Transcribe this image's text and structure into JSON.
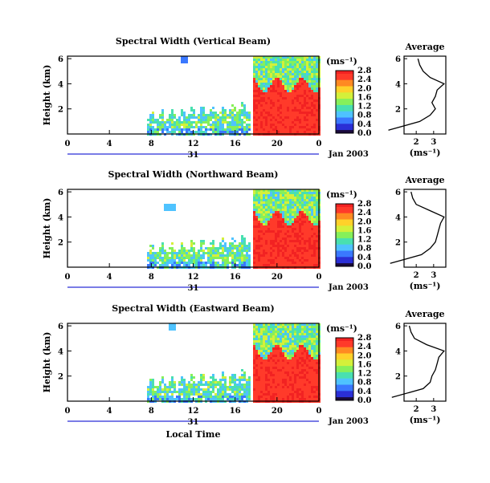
{
  "chart_data": [
    {
      "type": "heatmap",
      "title": "Spectral Width (Vertical Beam)",
      "ylabel": "Height (km)",
      "yticks": [
        "2",
        "4",
        "6"
      ],
      "xticks": [
        "0",
        "4",
        "8",
        "12",
        "16",
        "20",
        "0"
      ],
      "day_label": "31",
      "date_label": "Jan 2003",
      "colorbar": {
        "unit": "(ms⁻¹)",
        "ticks": [
          "0.0",
          "0.4",
          "0.8",
          "1.2",
          "1.6",
          "2.0",
          "2.4",
          "2.8"
        ]
      },
      "average": {
        "title": "Average",
        "xlabel": "(ms⁻¹)",
        "xticks": [
          "2",
          "3"
        ],
        "yticks": [
          "2",
          "4",
          "6"
        ],
        "profile": [
          [
            0.3,
            0.4
          ],
          [
            1.0,
            2.2
          ],
          [
            1.5,
            2.8
          ],
          [
            2.0,
            3.1
          ],
          [
            2.5,
            2.9
          ],
          [
            3.0,
            3.1
          ],
          [
            3.5,
            3.2
          ],
          [
            4.0,
            3.6
          ],
          [
            4.5,
            2.8
          ],
          [
            5.0,
            2.4
          ],
          [
            5.5,
            2.2
          ],
          [
            6.0,
            2.1
          ]
        ]
      },
      "annotations": []
    },
    {
      "type": "heatmap",
      "title": "Spectral Width (Northward Beam)",
      "ylabel": "Height (km)",
      "yticks": [
        "2",
        "4",
        "6"
      ],
      "xticks": [
        "0",
        "4",
        "8",
        "12",
        "16",
        "20",
        "0"
      ],
      "day_label": "31",
      "date_label": "Jan 2003",
      "colorbar": {
        "unit": "(ms⁻¹)",
        "ticks": [
          "0.0",
          "0.4",
          "0.8",
          "1.2",
          "1.6",
          "2.0",
          "2.4",
          "2.8"
        ]
      },
      "average": {
        "title": "Average",
        "xlabel": "(ms⁻¹)",
        "xticks": [
          "2",
          "3"
        ],
        "yticks": [
          "2",
          "4",
          "6"
        ],
        "profile": [
          [
            0.3,
            0.5
          ],
          [
            1.0,
            2.3
          ],
          [
            1.5,
            2.8
          ],
          [
            2.0,
            3.1
          ],
          [
            2.5,
            3.2
          ],
          [
            3.0,
            3.3
          ],
          [
            3.5,
            3.4
          ],
          [
            4.0,
            3.6
          ],
          [
            4.5,
            2.8
          ],
          [
            5.0,
            2.0
          ],
          [
            5.5,
            1.8
          ],
          [
            6.0,
            1.7
          ]
        ]
      }
    },
    {
      "type": "heatmap",
      "title": "Spectral Width (Eastward Beam)",
      "ylabel": "Height (km)",
      "yticks": [
        "2",
        "4",
        "6"
      ],
      "xticks": [
        "0",
        "4",
        "8",
        "12",
        "16",
        "20",
        "0"
      ],
      "day_label": "31",
      "date_label": "Jan 2003",
      "xlabel": "Local Time",
      "colorbar": {
        "unit": "(ms⁻¹)",
        "ticks": [
          "0.0",
          "0.4",
          "0.8",
          "1.2",
          "1.6",
          "2.0",
          "2.4",
          "2.8"
        ]
      },
      "average": {
        "title": "Average",
        "xlabel": "(ms⁻¹)",
        "xticks": [
          "2",
          "3"
        ],
        "yticks": [
          "2",
          "4",
          "6"
        ],
        "profile": [
          [
            0.3,
            0.6
          ],
          [
            1.0,
            2.4
          ],
          [
            1.5,
            2.8
          ],
          [
            2.0,
            2.9
          ],
          [
            2.5,
            3.1
          ],
          [
            3.0,
            3.2
          ],
          [
            3.5,
            3.3
          ],
          [
            4.0,
            3.6
          ],
          [
            4.5,
            2.6
          ],
          [
            5.0,
            1.9
          ],
          [
            5.5,
            1.7
          ],
          [
            6.0,
            1.6
          ]
        ]
      }
    }
  ],
  "colormap": [
    "#1a0a3a",
    "#2b2fd6",
    "#3a78ff",
    "#4fc3ff",
    "#49e0b0",
    "#86f05a",
    "#d4f03a",
    "#ffd12a",
    "#ff8a22",
    "#ff3a2a",
    "#f22222"
  ]
}
